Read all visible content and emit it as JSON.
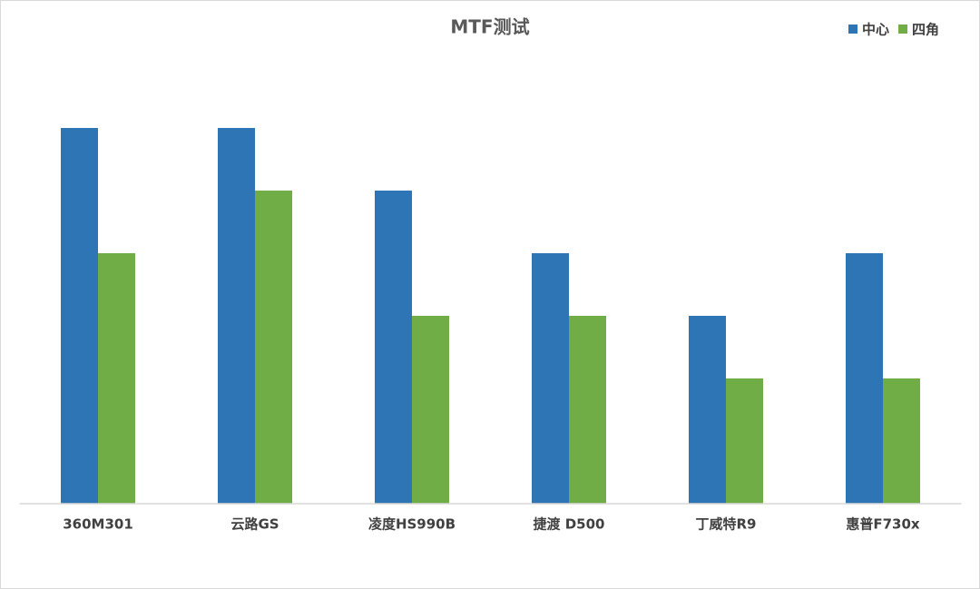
{
  "chart_data": {
    "type": "bar",
    "title": "MTF测试",
    "categories": [
      "360M301",
      "云路GS",
      "凌度HS990B",
      "捷渡 D500",
      "丁威特R9",
      "惠普F730x"
    ],
    "series": [
      {
        "name": "中心",
        "color": "#2e75b6",
        "values": [
          6,
          6,
          5,
          4,
          3,
          4
        ]
      },
      {
        "name": "四角",
        "color": "#70ad47",
        "values": [
          4,
          5,
          3,
          3,
          2,
          2
        ]
      }
    ],
    "ylim": [
      0,
      7
    ],
    "legend": "top-right"
  }
}
